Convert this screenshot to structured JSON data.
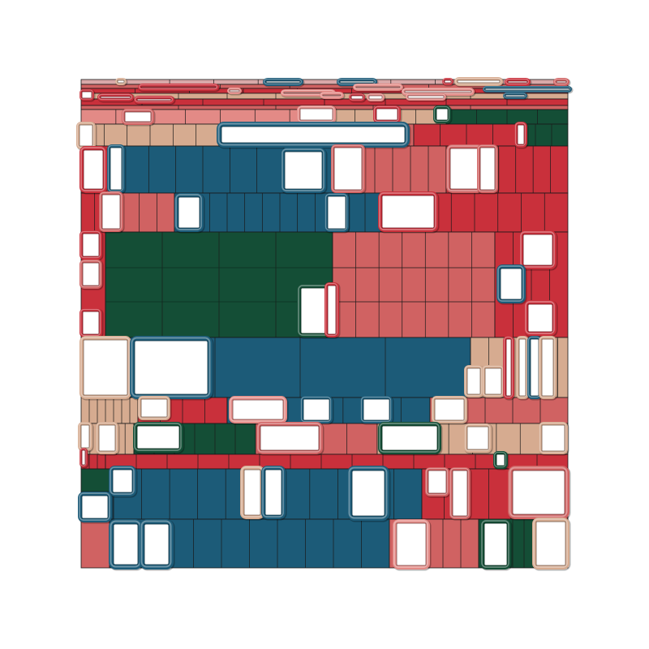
{
  "artwork": {
    "kind": "generative-treemap-mosaic",
    "palette": {
      "blue": "#1c5b78",
      "red": "#c9303b",
      "salmon": "#d06262",
      "pink": "#e38a86",
      "tan": "#d6ab90",
      "green": "#144e36",
      "blush": "#d9a9a9",
      "background": "#ffffff"
    },
    "frame_style": "white-window-with-rounded-3d-border"
  }
}
